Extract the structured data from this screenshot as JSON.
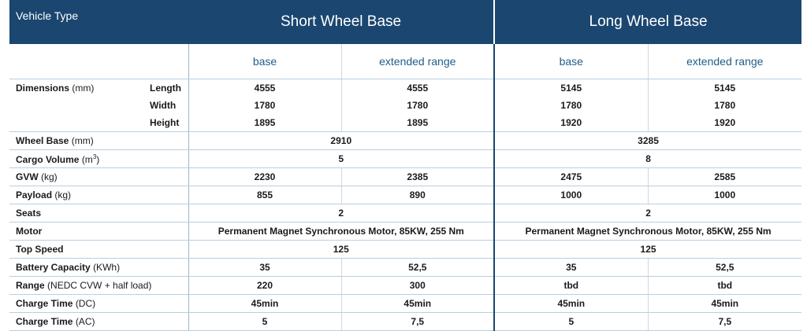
{
  "header": {
    "vehicle_type": "Vehicle Type",
    "swb": "Short Wheel Base",
    "lwb": "Long Wheel Base"
  },
  "variants": [
    "base",
    "extended range",
    "base",
    "extended range"
  ],
  "dimensions": {
    "label": "Dimensions",
    "unit": "(mm)",
    "length": {
      "label": "Length",
      "values": [
        "4555",
        "4555",
        "5145",
        "5145"
      ]
    },
    "width": {
      "label": "Width",
      "values": [
        "1780",
        "1780",
        "1780",
        "1780"
      ]
    },
    "height": {
      "label": "Height",
      "values": [
        "1895",
        "1895",
        "1920",
        "1920"
      ]
    }
  },
  "wheel_base": {
    "label": "Wheel Base",
    "unit": "(mm)",
    "swb": "2910",
    "lwb": "3285"
  },
  "cargo_volume": {
    "label": "Cargo Volume",
    "unit": "(m",
    "unit_sup": "3",
    "unit_end": ")",
    "swb": "5",
    "lwb": "8"
  },
  "gvw": {
    "label": "GVW",
    "unit": "(kg)",
    "values": [
      "2230",
      "2385",
      "2475",
      "2585"
    ]
  },
  "payload": {
    "label": "Payload",
    "unit": "(kg)",
    "values": [
      "855",
      "890",
      "1000",
      "1000"
    ]
  },
  "seats": {
    "label": "Seats",
    "swb": "2",
    "lwb": "2"
  },
  "motor": {
    "label": "Motor",
    "swb": "Permanent Magnet Synchronous Motor, 85KW, 255 Nm",
    "lwb": "Permanent Magnet Synchronous Motor, 85KW, 255 Nm"
  },
  "top_speed": {
    "label": "Top Speed",
    "swb": "125",
    "lwb": "125"
  },
  "battery": {
    "label": "Battery Capacity",
    "unit": "(KWh)",
    "values": [
      "35",
      "52,5",
      "35",
      "52,5"
    ]
  },
  "range": {
    "label": "Range",
    "unit": "(NEDC CVW + half load)",
    "values": [
      "220",
      "300",
      "tbd",
      "tbd"
    ]
  },
  "charge_dc": {
    "label": "Charge Time",
    "unit": "(DC)",
    "values": [
      "45min",
      "45min",
      "45min",
      "45min"
    ]
  },
  "charge_ac": {
    "label": "Charge Time",
    "unit": "(AC)",
    "values": [
      "5",
      "7,5",
      "5",
      "7,5"
    ]
  }
}
